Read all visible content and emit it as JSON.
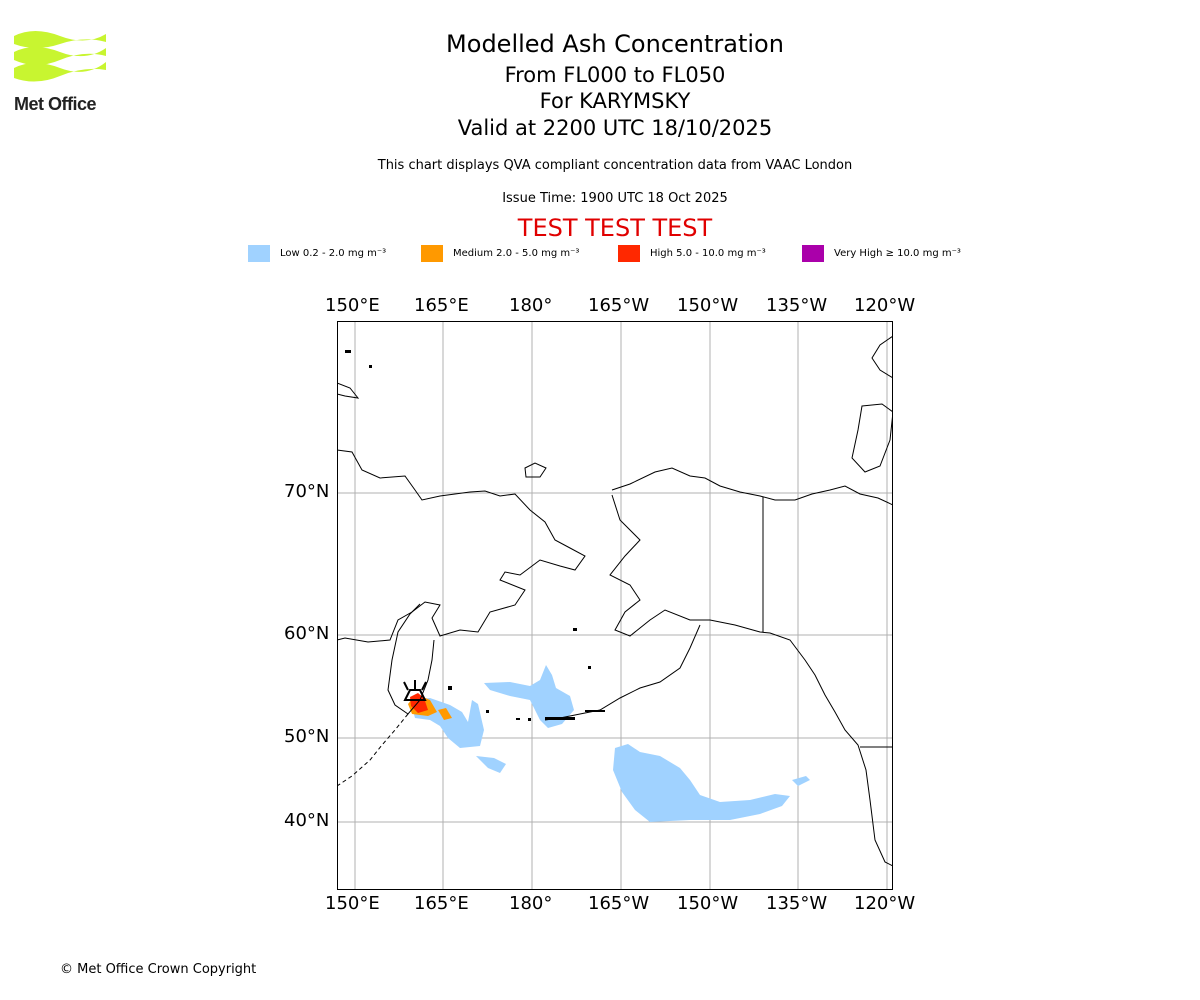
{
  "logo": {
    "text": "Met Office"
  },
  "header": {
    "title": "Modelled Ash Concentration",
    "levels": "From FL000 to FL050",
    "volcano": "For KARYMSKY",
    "valid": "Valid at 2200 UTC 18/10/2025",
    "subtitle": "This chart displays QVA compliant concentration data from VAAC London",
    "issue_time": "Issue Time: 1900 UTC 18 Oct 2025",
    "test_banner": "TEST TEST TEST"
  },
  "legend": [
    {
      "label": "Low 0.2 - 2.0 mg m⁻³",
      "color": "#a0d2ff"
    },
    {
      "label": "Medium 2.0 - 5.0 mg m⁻³",
      "color": "#ff9900"
    },
    {
      "label": "High 5.0 - 10.0 mg m⁻³",
      "color": "#ff2800"
    },
    {
      "label": "Very High ≥ 10.0 mg m⁻³",
      "color": "#aa00aa"
    }
  ],
  "map": {
    "lon_labels": [
      "150°E",
      "165°E",
      "180°",
      "165°W",
      "150°W",
      "135°W",
      "120°W"
    ],
    "lat_labels": [
      "70°N",
      "60°N",
      "50°N",
      "40°N"
    ],
    "volcano_icon": "volcano-icon"
  },
  "footer": {
    "copyright": "© Met Office Crown Copyright"
  }
}
